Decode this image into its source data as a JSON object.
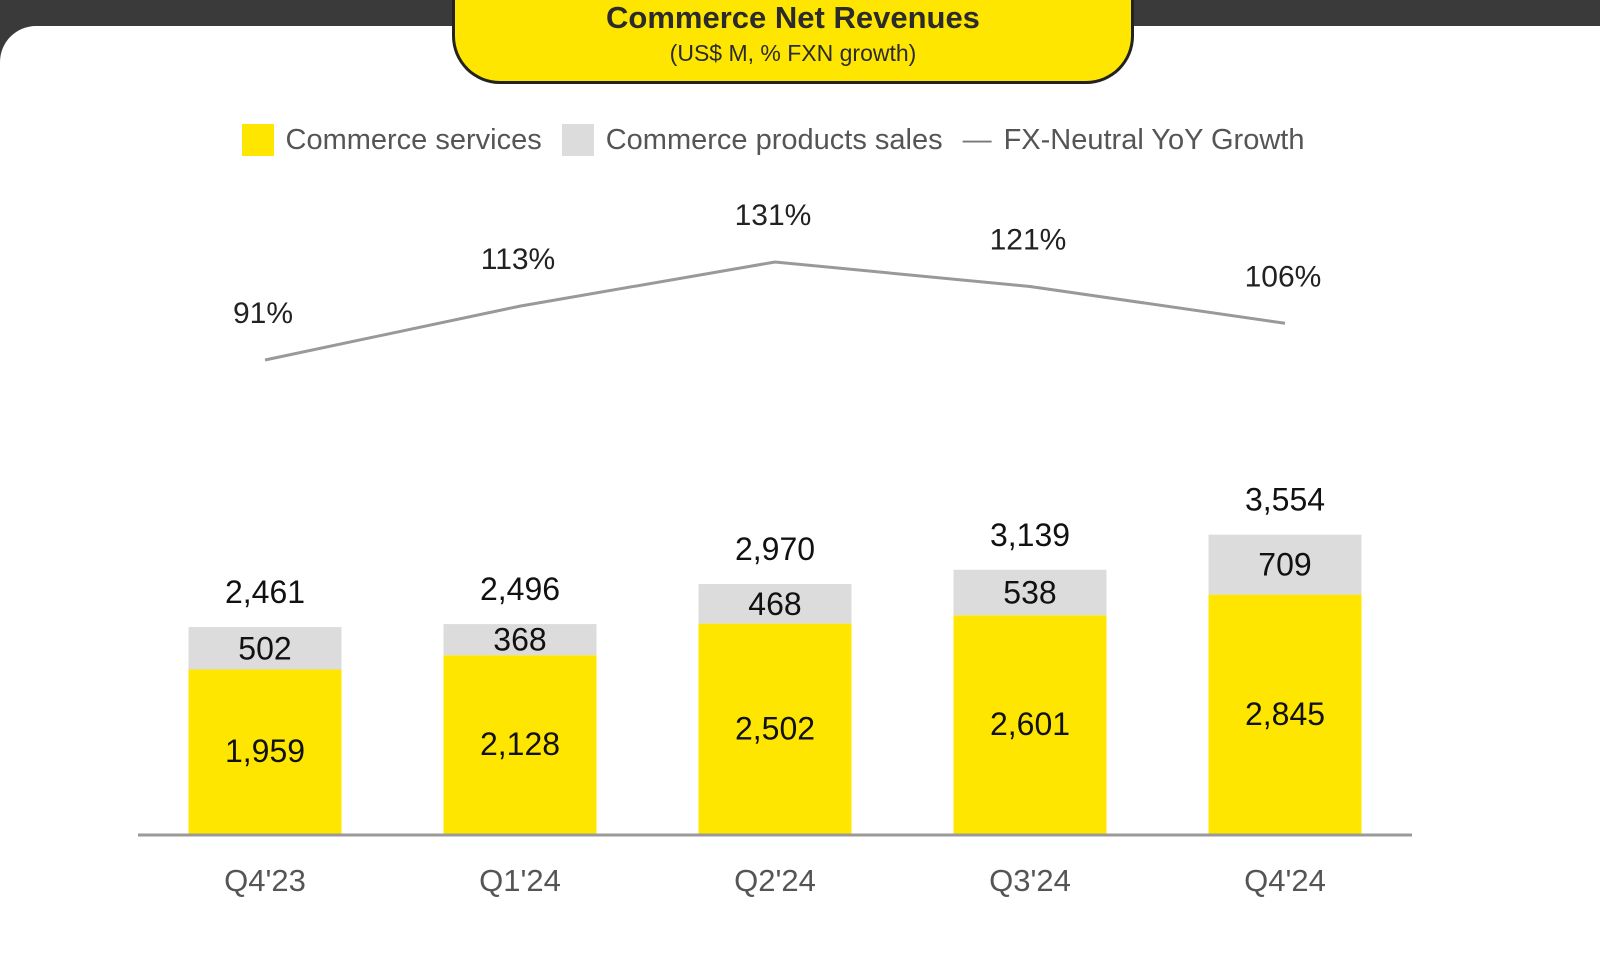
{
  "chart_data": {
    "type": "bar",
    "stacked": true,
    "title": "Commerce Net Revenues",
    "subtitle": "(US$ M, % FXN growth)",
    "categories": [
      "Q4'23",
      "Q1'24",
      "Q2'24",
      "Q3'24",
      "Q4'24"
    ],
    "series": [
      {
        "name": "Commerce services",
        "values": [
          1959,
          2128,
          2502,
          2601,
          2845
        ],
        "color": "#ffe600"
      },
      {
        "name": "Commerce products sales",
        "values": [
          502,
          368,
          468,
          538,
          709
        ],
        "color": "#dcdcdc"
      }
    ],
    "totals": [
      2461,
      2496,
      2970,
      3139,
      3554
    ],
    "line_series": {
      "name": "FX-Neutral YoY Growth",
      "values": [
        91,
        113,
        131,
        121,
        106
      ],
      "color": "#999999"
    },
    "value_labels": {
      "services": [
        "1,959",
        "2,128",
        "2,502",
        "2,601",
        "2,845"
      ],
      "products": [
        "502",
        "368",
        "468",
        "538",
        "709"
      ],
      "totals": [
        "2,461",
        "2,496",
        "2,970",
        "3,139",
        "3,554"
      ],
      "growth": [
        "91%",
        "113%",
        "131%",
        "121%",
        "106%"
      ]
    },
    "legend_position": "top-center",
    "grid": false
  }
}
